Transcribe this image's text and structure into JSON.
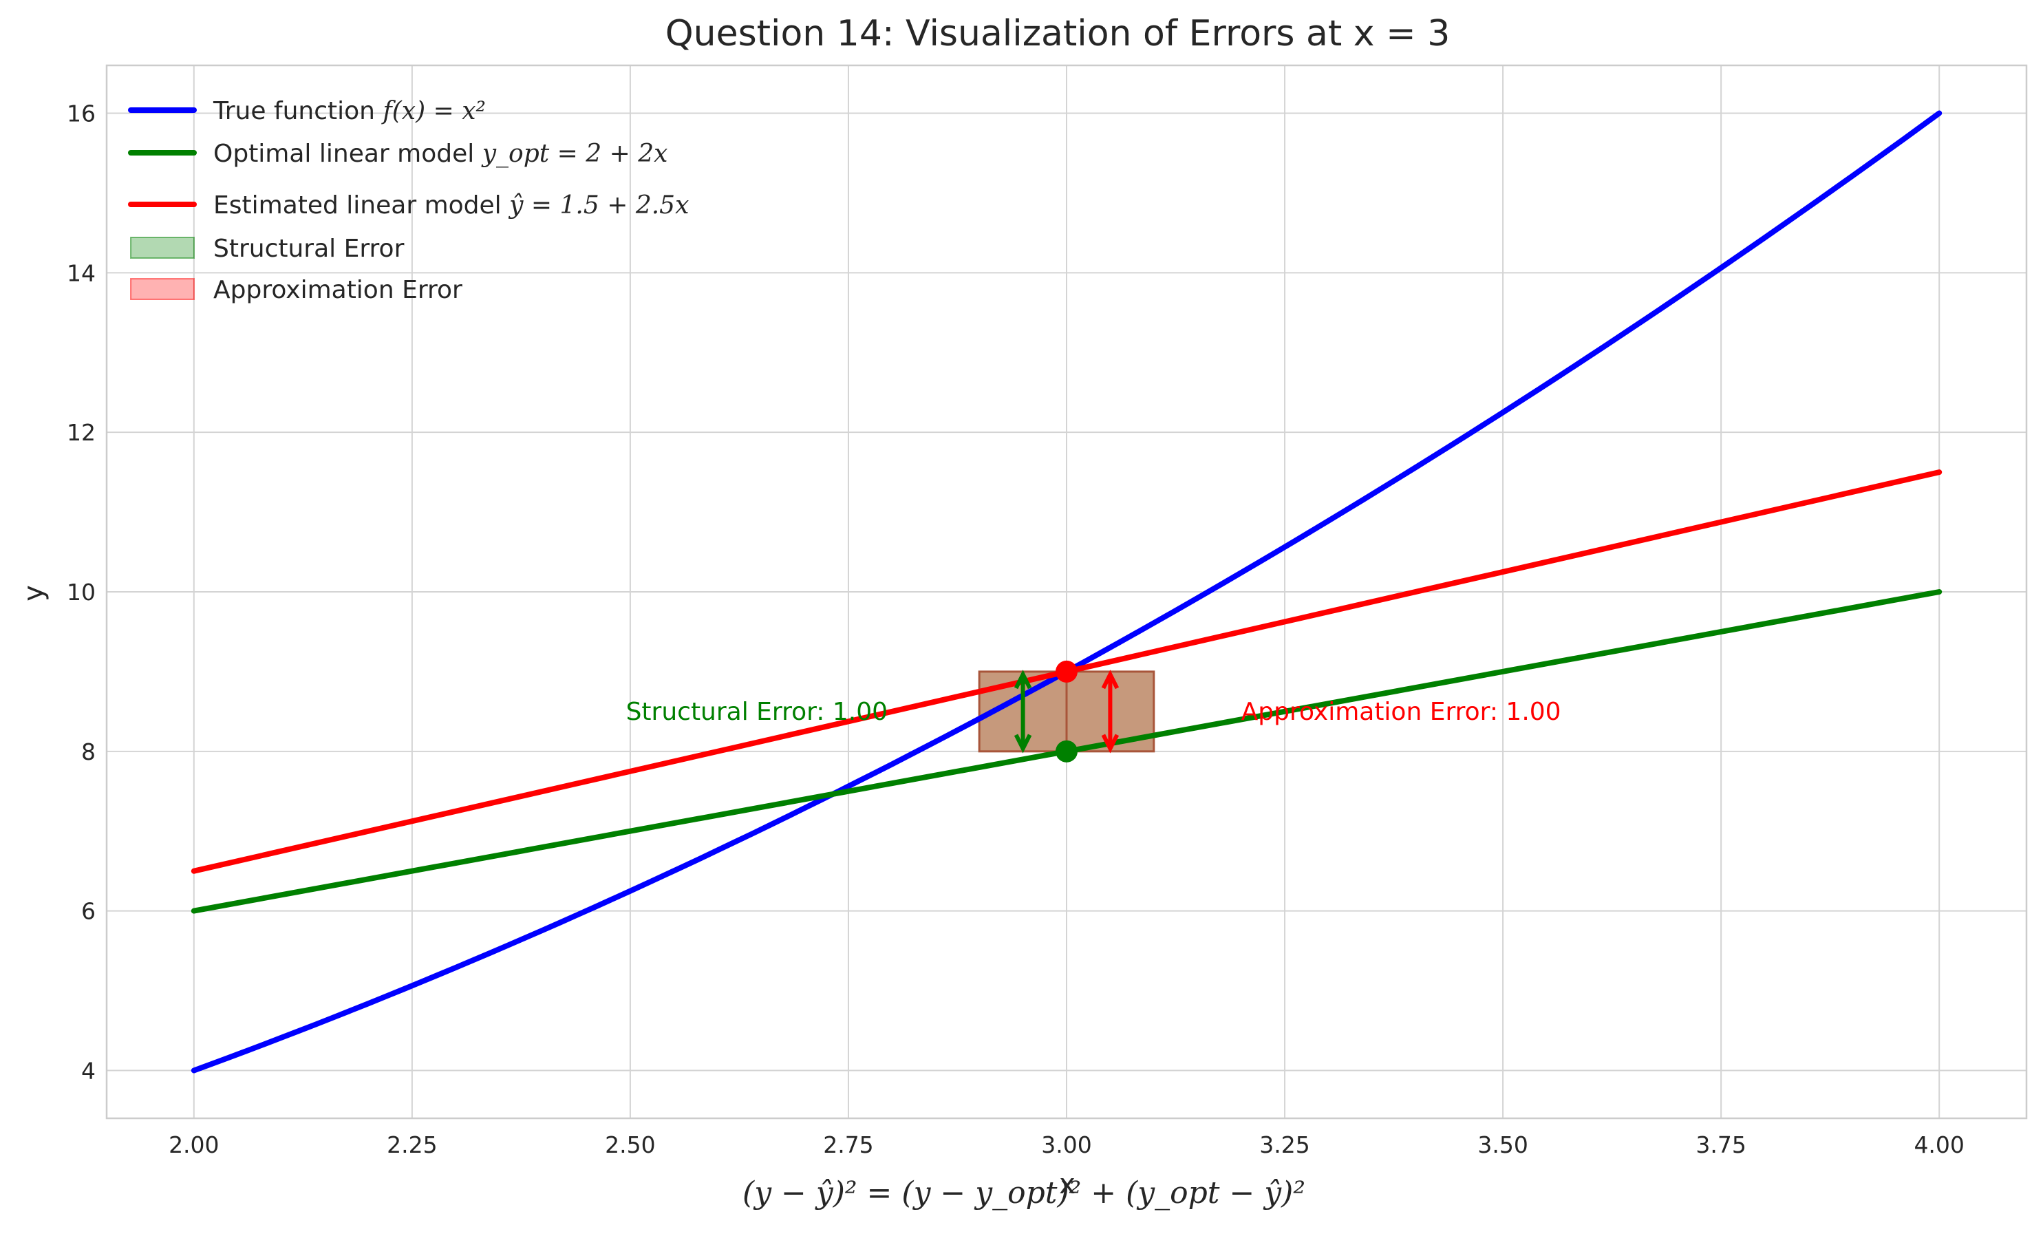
{
  "chart_data": {
    "type": "line",
    "title": "Question 14: Visualization of Errors at x = 3",
    "xlabel": "x",
    "ylabel": "y",
    "xlim": [
      1.9,
      4.1
    ],
    "ylim": [
      3.4,
      16.6
    ],
    "grid": true,
    "x_ticks": [
      2.0,
      2.25,
      2.5,
      2.75,
      3.0,
      3.25,
      3.5,
      3.75,
      4.0
    ],
    "x_tick_labels": [
      "2.00",
      "2.25",
      "2.50",
      "2.75",
      "3.00",
      "3.25",
      "3.50",
      "3.75",
      "4.00"
    ],
    "y_ticks": [
      4,
      6,
      8,
      10,
      12,
      14,
      16
    ],
    "y_tick_labels": [
      "4",
      "6",
      "8",
      "10",
      "12",
      "14",
      "16"
    ],
    "legend_placement": "upper-left",
    "x_range": [
      2.0,
      4.0
    ],
    "series": [
      {
        "name_prefix": "True function ",
        "name_math": "f(x) = x²",
        "color": "#0000ff",
        "formula": "x^2",
        "points": [
          [
            2.0,
            4.0
          ],
          [
            2.25,
            5.0625
          ],
          [
            2.5,
            6.25
          ],
          [
            2.75,
            7.5625
          ],
          [
            3.0,
            9.0
          ],
          [
            3.25,
            10.5625
          ],
          [
            3.5,
            12.25
          ],
          [
            3.75,
            14.0625
          ],
          [
            4.0,
            16.0
          ]
        ]
      },
      {
        "name_prefix": "Optimal linear model ",
        "name_math": "y_opt = 2 + 2x",
        "color": "#008000",
        "formula": "2 + 2x",
        "points": [
          [
            2.0,
            6.0
          ],
          [
            4.0,
            10.0
          ]
        ]
      },
      {
        "name_prefix": "Estimated linear model ",
        "name_math": "ŷ = 1.5 + 2.5x",
        "color": "#ff0000",
        "formula": "1.5 + 2.5x",
        "points": [
          [
            2.0,
            6.5
          ],
          [
            4.0,
            11.5
          ]
        ]
      }
    ],
    "error_regions": [
      {
        "name": "Structural Error",
        "color": "#008000",
        "x_range": [
          2.9,
          3.0
        ],
        "y_range": [
          8.0,
          9.0
        ]
      },
      {
        "name": "Approximation Error",
        "color": "#ff0000",
        "x_range": [
          3.0,
          3.1
        ],
        "y_range": [
          8.0,
          9.0
        ]
      }
    ],
    "points_marked": [
      {
        "x": 3.0,
        "y": 9.0,
        "color": "#ff0000"
      },
      {
        "x": 3.0,
        "y": 8.0,
        "color": "#008000"
      }
    ],
    "error_arrows": [
      {
        "x": 2.95,
        "y_from": 8.0,
        "y_to": 9.0,
        "color": "#008000"
      },
      {
        "x": 3.05,
        "y_from": 8.0,
        "y_to": 9.0,
        "color": "#ff0000"
      }
    ],
    "annotations": [
      {
        "text": "Structural Error: 1.00",
        "x": 2.495,
        "y": 8.5,
        "color": "#008000"
      },
      {
        "text": "Approximation Error: 1.00",
        "x": 3.2,
        "y": 8.5,
        "color": "#ff0000"
      }
    ],
    "bottom_equation": "(y − ŷ)² = (y − y_opt)² + (y_opt − ŷ)²"
  }
}
